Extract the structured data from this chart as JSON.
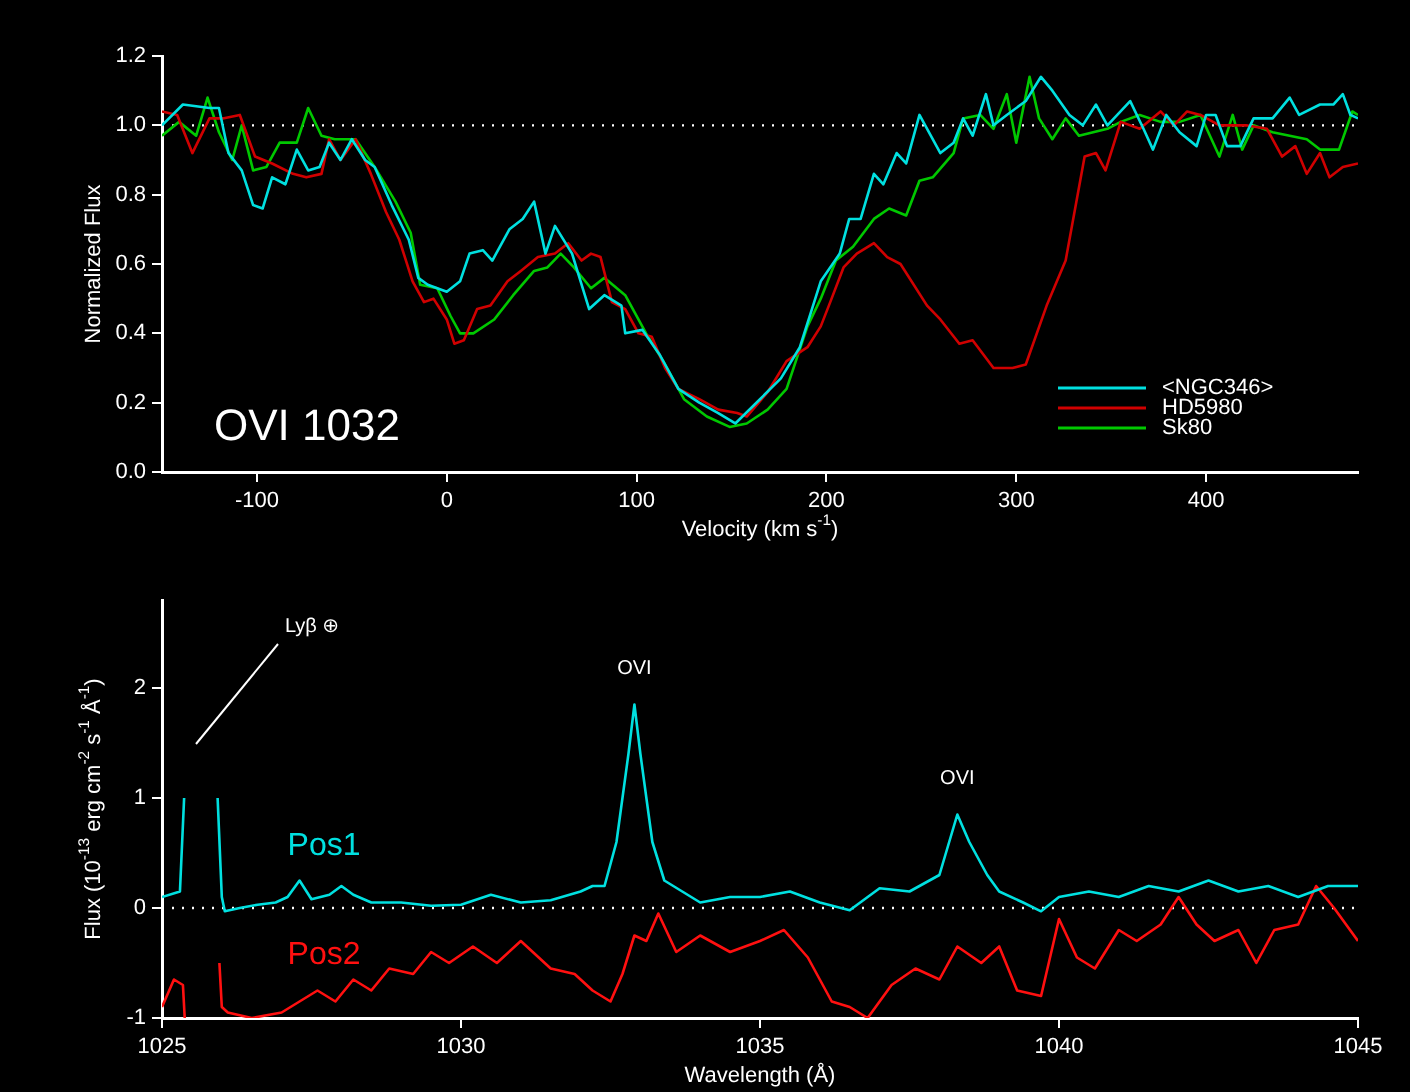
{
  "chart_data": [
    {
      "type": "line",
      "xlabel": "Velocity (km s$^{-1}$)",
      "ylabel": "Normalized Flux",
      "annotations": [
        "OVI 1032"
      ],
      "legend": "bottom right",
      "xlim": [
        -150,
        480
      ],
      "xticks": [
        -100,
        0,
        100,
        200,
        300,
        400
      ],
      "ylim": [
        0,
        1.2
      ],
      "yticks": [
        {
          "value": 0,
          "label": "0.0"
        },
        {
          "value": 0.2,
          "label": "0.2"
        },
        {
          "value": 0.4,
          "label": "0.4"
        },
        {
          "value": 0.6,
          "label": "0.6"
        },
        {
          "value": 0.8,
          "label": "0.8"
        },
        {
          "value": 1,
          "label": "1.0"
        },
        {
          "value": 1.2,
          "label": "1.2"
        }
      ],
      "ref_lines": [
        {
          "axis": "y",
          "value": 1,
          "line_style": "dotted",
          "color": "#ffffff"
        }
      ],
      "series": [
        {
          "name": "<NGC346>",
          "color": "#00e0e0",
          "x": [
            -150,
            -139,
            -125,
            -120,
            -115,
            -108,
            -102,
            -97,
            -92,
            -85,
            -79,
            -73,
            -67,
            -62,
            -56,
            -50,
            -43,
            -38,
            -29,
            -20,
            -15,
            -10,
            0,
            7,
            12,
            19,
            24,
            33,
            40,
            46,
            52,
            57,
            66,
            75,
            83,
            92,
            94,
            103,
            112,
            122,
            133,
            143,
            152,
            165,
            176,
            186,
            197,
            207,
            212,
            218,
            225,
            230,
            237,
            242,
            249,
            260,
            267,
            272,
            277,
            284,
            288,
            295,
            305,
            313,
            319,
            328,
            335,
            342,
            348,
            360,
            367,
            372,
            379,
            386,
            395,
            400,
            405,
            411,
            418,
            425,
            435,
            444,
            449,
            460,
            467,
            472,
            476,
            480
          ],
          "values": [
            1.0,
            1.06,
            1.05,
            1.05,
            0.92,
            0.87,
            0.77,
            0.76,
            0.85,
            0.83,
            0.93,
            0.87,
            0.88,
            0.95,
            0.9,
            0.96,
            0.9,
            0.88,
            0.77,
            0.67,
            0.56,
            0.54,
            0.52,
            0.55,
            0.63,
            0.64,
            0.61,
            0.7,
            0.73,
            0.78,
            0.63,
            0.71,
            0.63,
            0.47,
            0.51,
            0.48,
            0.4,
            0.41,
            0.34,
            0.24,
            0.2,
            0.17,
            0.14,
            0.21,
            0.27,
            0.36,
            0.55,
            0.63,
            0.73,
            0.73,
            0.86,
            0.83,
            0.92,
            0.89,
            1.03,
            0.92,
            0.95,
            1.02,
            0.97,
            1.09,
            1.0,
            1.03,
            1.07,
            1.14,
            1.1,
            1.03,
            1.0,
            1.06,
            1.0,
            1.07,
            0.99,
            0.93,
            1.03,
            0.98,
            0.94,
            1.03,
            1.03,
            0.94,
            0.94,
            1.02,
            1.02,
            1.08,
            1.03,
            1.06,
            1.06,
            1.09,
            1.03,
            1.02
          ]
        },
        {
          "name": "HD5980",
          "color": "#d00000",
          "x": [
            -150,
            -142,
            -134,
            -125,
            -118,
            -109,
            -101,
            -92,
            -81,
            -74,
            -66,
            -62,
            -56,
            -48,
            -40,
            -32,
            -25,
            -18,
            -12,
            -7,
            0,
            4,
            9,
            16,
            23,
            32,
            39,
            48,
            57,
            64,
            71,
            76,
            81,
            87,
            94,
            101,
            108,
            115,
            122,
            133,
            143,
            153,
            158,
            169,
            179,
            190,
            197,
            202,
            209,
            216,
            225,
            232,
            239,
            253,
            260,
            270,
            277,
            288,
            298,
            305,
            316,
            326,
            336,
            342,
            347,
            355,
            365,
            376,
            383,
            390,
            397,
            407,
            421,
            432,
            440,
            447,
            453,
            460,
            465,
            472,
            480
          ],
          "values": [
            1.04,
            1.03,
            0.92,
            1.02,
            1.02,
            1.03,
            0.91,
            0.89,
            0.86,
            0.85,
            0.86,
            0.96,
            0.9,
            0.96,
            0.86,
            0.75,
            0.67,
            0.55,
            0.49,
            0.5,
            0.44,
            0.37,
            0.38,
            0.47,
            0.48,
            0.55,
            0.58,
            0.62,
            0.63,
            0.66,
            0.61,
            0.63,
            0.62,
            0.49,
            0.47,
            0.4,
            0.39,
            0.3,
            0.24,
            0.21,
            0.18,
            0.17,
            0.16,
            0.23,
            0.32,
            0.36,
            0.42,
            0.49,
            0.59,
            0.63,
            0.66,
            0.62,
            0.6,
            0.48,
            0.44,
            0.37,
            0.38,
            0.3,
            0.3,
            0.31,
            0.48,
            0.61,
            0.91,
            0.92,
            0.87,
            1.01,
            0.99,
            1.04,
            1.0,
            1.04,
            1.03,
            1.0,
            1.0,
            0.99,
            0.91,
            0.94,
            0.86,
            0.92,
            0.85,
            0.88,
            0.89
          ]
        },
        {
          "name": "Sk80",
          "color": "#00c800",
          "x": [
            -150,
            -141,
            -132,
            -126,
            -120,
            -113,
            -108,
            -102,
            -95,
            -88,
            -79,
            -73,
            -66,
            -59,
            -48,
            -38,
            -27,
            -19,
            -14,
            -5,
            2,
            7,
            14,
            25,
            35,
            46,
            53,
            60,
            67,
            76,
            83,
            94,
            105,
            114,
            125,
            137,
            149,
            158,
            169,
            179,
            190,
            197,
            205,
            214,
            225,
            233,
            242,
            249,
            256,
            267,
            272,
            281,
            288,
            295,
            300,
            307,
            312,
            319,
            326,
            333,
            348,
            355,
            365,
            376,
            386,
            397,
            407,
            414,
            419,
            425,
            435,
            444,
            453,
            460,
            470,
            477,
            480
          ],
          "values": [
            0.97,
            1.01,
            0.97,
            1.08,
            0.98,
            0.9,
            1.0,
            0.87,
            0.88,
            0.95,
            0.95,
            1.05,
            0.97,
            0.96,
            0.96,
            0.88,
            0.78,
            0.69,
            0.54,
            0.53,
            0.45,
            0.4,
            0.4,
            0.44,
            0.51,
            0.58,
            0.59,
            0.63,
            0.59,
            0.53,
            0.56,
            0.51,
            0.4,
            0.32,
            0.21,
            0.16,
            0.13,
            0.14,
            0.18,
            0.24,
            0.42,
            0.5,
            0.61,
            0.65,
            0.73,
            0.76,
            0.74,
            0.84,
            0.85,
            0.92,
            1.02,
            1.03,
            0.99,
            1.09,
            0.95,
            1.14,
            1.02,
            0.96,
            1.02,
            0.97,
            0.99,
            1.01,
            1.03,
            1.01,
            1.01,
            1.03,
            0.91,
            1.03,
            0.93,
            1.0,
            0.98,
            0.97,
            0.96,
            0.93,
            0.93,
            1.04,
            1.03
          ]
        }
      ]
    },
    {
      "type": "line",
      "xlabel": "Wavelength (Å)",
      "ylabel": "Flux (10$^{-13}$ erg cm$^{-2}$ s$^{-1}$ Å$^{-1}$)",
      "annotations": [
        "Lyβ ⊕",
        {
          "text": "OVI",
          "x": 1032.9,
          "y": 1.85
        },
        {
          "text": "OVI",
          "x": 1038.3,
          "y": 0.85
        }
      ],
      "xlim": [
        1025,
        1045
      ],
      "xticks": [
        1025,
        1030,
        1035,
        1040,
        1045
      ],
      "ylim": [
        -1,
        2.8
      ],
      "yticks": [
        -1,
        0,
        1,
        2
      ],
      "ref_lines": [
        {
          "axis": "y",
          "value": 0,
          "line_style": "dotted",
          "color": "#ffffff"
        }
      ],
      "series": [
        {
          "name": "Pos1",
          "color": "#00e0e0",
          "x": [
            1025.0,
            1025.3,
            1025.37,
            1025.4,
            1025.9,
            1025.93,
            1026.0,
            1026.05,
            1026.3,
            1026.6,
            1026.9,
            1027.1,
            1027.3,
            1027.5,
            1027.8,
            1028.0,
            1028.2,
            1028.5,
            1029.0,
            1029.5,
            1030.0,
            1030.5,
            1031.0,
            1031.5,
            1032.0,
            1032.2,
            1032.4,
            1032.6,
            1032.8,
            1032.9,
            1033.0,
            1033.2,
            1033.4,
            1033.7,
            1034.0,
            1034.5,
            1035.0,
            1035.5,
            1036.0,
            1036.5,
            1037.0,
            1037.5,
            1038.0,
            1038.3,
            1038.5,
            1038.8,
            1039.0,
            1039.4,
            1039.7,
            1040.0,
            1040.5,
            1041.0,
            1041.5,
            1042.0,
            1042.5,
            1043.0,
            1043.5,
            1044.0,
            1044.5,
            1045.0
          ],
          "values": [
            0.1,
            0.15,
            1.0,
            null,
            null,
            1.0,
            0.1,
            -0.03,
            0.0,
            0.03,
            0.05,
            0.1,
            0.25,
            0.08,
            0.12,
            0.2,
            0.12,
            0.05,
            0.05,
            0.02,
            0.03,
            0.12,
            0.05,
            0.07,
            0.15,
            0.2,
            0.2,
            0.6,
            1.4,
            1.85,
            1.4,
            0.6,
            0.25,
            0.15,
            0.05,
            0.1,
            0.1,
            0.15,
            0.05,
            -0.02,
            0.18,
            0.15,
            0.3,
            0.85,
            0.6,
            0.3,
            0.15,
            0.05,
            -0.03,
            0.1,
            0.15,
            0.1,
            0.2,
            0.15,
            0.25,
            0.15,
            0.2,
            0.1,
            0.2,
            0.2
          ]
        },
        {
          "name": "Pos2",
          "color": "#ff1010",
          "x": [
            1025.0,
            1025.2,
            1025.35,
            1025.38,
            1025.4,
            1025.93,
            1025.96,
            1026.0,
            1026.1,
            1026.5,
            1027.0,
            1027.3,
            1027.6,
            1027.9,
            1028.2,
            1028.5,
            1028.8,
            1029.2,
            1029.5,
            1029.8,
            1030.2,
            1030.6,
            1031.0,
            1031.5,
            1031.9,
            1032.2,
            1032.5,
            1032.7,
            1032.9,
            1033.1,
            1033.3,
            1033.6,
            1034.0,
            1034.5,
            1035.0,
            1035.4,
            1035.8,
            1036.2,
            1036.5,
            1036.8,
            1037.2,
            1037.6,
            1038.0,
            1038.3,
            1038.7,
            1039.0,
            1039.3,
            1039.7,
            1040.0,
            1040.3,
            1040.6,
            1041.0,
            1041.3,
            1041.7,
            1042.0,
            1042.3,
            1042.6,
            1043.0,
            1043.3,
            1043.6,
            1044.0,
            1044.3,
            1044.6,
            1045.0
          ],
          "values": [
            -0.9,
            -0.65,
            -0.7,
            -1.0,
            null,
            null,
            -0.5,
            -0.9,
            -0.95,
            -1.0,
            -0.95,
            -0.85,
            -0.75,
            -0.85,
            -0.65,
            -0.75,
            -0.55,
            -0.6,
            -0.4,
            -0.5,
            -0.35,
            -0.5,
            -0.3,
            -0.55,
            -0.6,
            -0.75,
            -0.85,
            -0.6,
            -0.25,
            -0.3,
            -0.05,
            -0.4,
            -0.25,
            -0.4,
            -0.3,
            -0.2,
            -0.45,
            -0.85,
            -0.9,
            -1.0,
            -0.7,
            -0.55,
            -0.65,
            -0.35,
            -0.5,
            -0.35,
            -0.75,
            -0.8,
            -0.1,
            -0.45,
            -0.55,
            -0.2,
            -0.3,
            -0.15,
            0.1,
            -0.15,
            -0.3,
            -0.2,
            -0.5,
            -0.2,
            -0.15,
            0.2,
            0.0,
            -0.3
          ]
        }
      ]
    }
  ]
}
